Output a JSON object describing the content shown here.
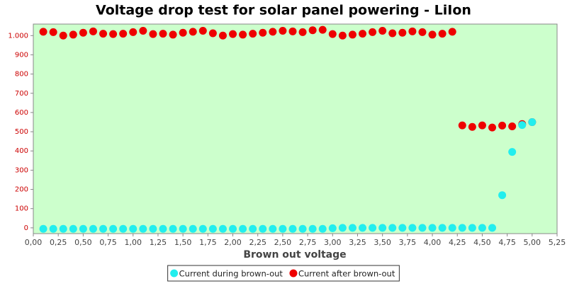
{
  "chart_data": {
    "type": "scatter",
    "title": "Voltage drop test for solar panel powering -  LiIon",
    "x_label": "Brown out voltage",
    "x": [
      0.1,
      0.2,
      0.3,
      0.4,
      0.5,
      0.6,
      0.7,
      0.8,
      0.9,
      1.0,
      1.1,
      1.2,
      1.3,
      1.4,
      1.5,
      1.6,
      1.7,
      1.8,
      1.9,
      2.0,
      2.1,
      2.2,
      2.3,
      2.4,
      2.5,
      2.6,
      2.7,
      2.8,
      2.9,
      3.0,
      3.1,
      3.2,
      3.3,
      3.4,
      3.5,
      3.6,
      3.7,
      3.8,
      3.9,
      4.0,
      4.1,
      4.2,
      4.3,
      4.4,
      4.5,
      4.6,
      4.7,
      4.8,
      4.9,
      5.0
    ],
    "series": [
      {
        "name": "Current during brown-out",
        "color": "#22eeee",
        "values": [
          -5,
          -5,
          -5,
          -5,
          -5,
          -5,
          -5,
          -5,
          -5,
          -5,
          -5,
          -5,
          -5,
          -5,
          -5,
          -5,
          -5,
          -5,
          -5,
          -5,
          -5,
          -5,
          -5,
          -5,
          -5,
          -5,
          -5,
          -5,
          -5,
          -2,
          0,
          0,
          0,
          0,
          0,
          0,
          0,
          0,
          0,
          0,
          0,
          0,
          0,
          0,
          0,
          0,
          170,
          395,
          535,
          550
        ]
      },
      {
        "name": "Current after brown-out",
        "color": "#ee0000",
        "values": [
          1020,
          1018,
          1000,
          1005,
          1015,
          1022,
          1010,
          1008,
          1010,
          1018,
          1025,
          1008,
          1010,
          1005,
          1015,
          1020,
          1025,
          1012,
          1000,
          1008,
          1005,
          1010,
          1015,
          1020,
          1025,
          1022,
          1018,
          1028,
          1030,
          1008,
          1000,
          1005,
          1010,
          1018,
          1025,
          1012,
          1015,
          1022,
          1018,
          1005,
          1010,
          1020,
          533,
          525,
          533,
          522,
          532,
          528,
          540,
          550
        ]
      }
    ],
    "xlim": [
      0,
      5.25
    ],
    "ylim": [
      -30,
      1060
    ],
    "xticks": [
      {
        "value": 0,
        "label": "0,00"
      },
      {
        "value": 0.25,
        "label": "0,25"
      },
      {
        "value": 0.5,
        "label": "0,50"
      },
      {
        "value": 0.75,
        "label": "0,75"
      },
      {
        "value": 1,
        "label": "1,00"
      },
      {
        "value": 1.25,
        "label": "1,25"
      },
      {
        "value": 1.5,
        "label": "1,50"
      },
      {
        "value": 1.75,
        "label": "1,75"
      },
      {
        "value": 2,
        "label": "2,00"
      },
      {
        "value": 2.25,
        "label": "2,25"
      },
      {
        "value": 2.5,
        "label": "2,50"
      },
      {
        "value": 2.75,
        "label": "2,75"
      },
      {
        "value": 3,
        "label": "3,00"
      },
      {
        "value": 3.25,
        "label": "3,25"
      },
      {
        "value": 3.5,
        "label": "3,50"
      },
      {
        "value": 3.75,
        "label": "3,75"
      },
      {
        "value": 4,
        "label": "4,00"
      },
      {
        "value": 4.25,
        "label": "4,25"
      },
      {
        "value": 4.5,
        "label": "4,50"
      },
      {
        "value": 4.75,
        "label": "4,75"
      },
      {
        "value": 5,
        "label": "5,00"
      },
      {
        "value": 5.25,
        "label": "5,25"
      }
    ],
    "yticks": [
      0,
      100,
      200,
      300,
      400,
      500,
      600,
      700,
      800,
      900,
      {
        "value": 1000,
        "label": "1.000"
      }
    ],
    "background": "#ccffcc",
    "legend": "bottom"
  }
}
